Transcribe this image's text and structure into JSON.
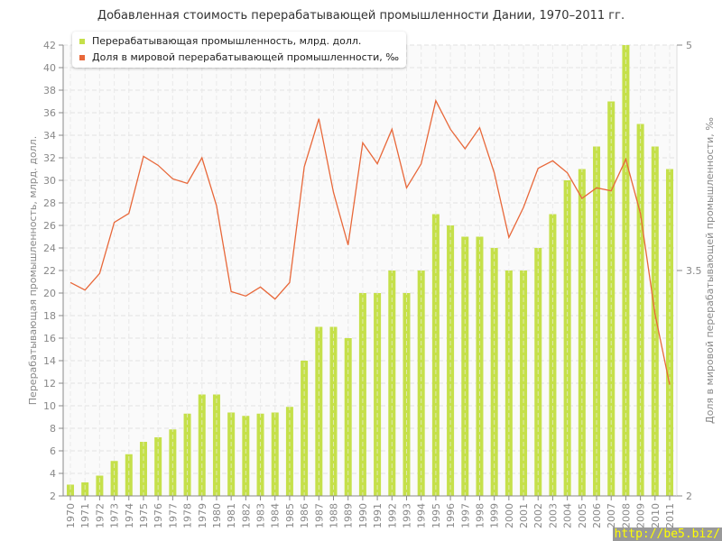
{
  "chart_data": {
    "type": "bar",
    "title": "Добавленная стоимость перерабатывающей промышленности Дании, 1970–2011 гг.",
    "ylabel": "Перерабатывающая промышленность, млрд. долл.",
    "y2label": "Доля в мировой перерабатывающей промышленности, ‰",
    "ylim": [
      2,
      42
    ],
    "y2lim": [
      2,
      5
    ],
    "y2ticks": [
      2,
      3.5,
      5
    ],
    "grid": true,
    "legend_position": "top-left",
    "categories": [
      "1970",
      "1971",
      "1972",
      "1973",
      "1974",
      "1975",
      "1976",
      "1977",
      "1978",
      "1979",
      "1980",
      "1981",
      "1982",
      "1983",
      "1984",
      "1985",
      "1986",
      "1987",
      "1988",
      "1989",
      "1990",
      "1991",
      "1992",
      "1993",
      "1994",
      "1995",
      "1996",
      "1997",
      "1998",
      "1999",
      "2000",
      "2001",
      "2002",
      "2003",
      "2004",
      "2005",
      "2006",
      "2007",
      "2008",
      "2009",
      "2010",
      "2011"
    ],
    "series": [
      {
        "name": "Перерабатывающая промышленность, млрд. долл.",
        "type": "bar",
        "axis": "left",
        "color": "#c5e04a",
        "values": [
          3.0,
          3.2,
          3.8,
          5.1,
          5.7,
          6.8,
          7.2,
          7.9,
          9.3,
          11,
          11,
          9.4,
          9.1,
          9.3,
          9.4,
          9.9,
          14,
          17,
          17,
          16,
          20,
          20,
          22,
          20,
          22,
          27,
          26,
          25,
          25,
          24,
          22,
          22,
          24,
          27,
          30,
          31,
          33,
          37,
          42,
          35,
          33,
          31
        ]
      },
      {
        "name": "Доля в мировой перерабатывающей промышленности, ‰",
        "type": "line",
        "axis": "right",
        "color": "#e8683a",
        "values": [
          3.42,
          3.37,
          3.48,
          3.82,
          3.88,
          4.26,
          4.2,
          4.11,
          4.08,
          4.25,
          3.93,
          3.36,
          3.33,
          3.39,
          3.31,
          3.42,
          4.19,
          4.51,
          4.02,
          3.67,
          4.35,
          4.21,
          4.44,
          4.05,
          4.21,
          4.63,
          4.44,
          4.31,
          4.45,
          4.15,
          3.72,
          3.92,
          4.18,
          4.23,
          4.15,
          3.98,
          4.05,
          4.03,
          4.24,
          3.88,
          3.21,
          2.74
        ]
      }
    ]
  },
  "watermark": "http://be5.biz/"
}
